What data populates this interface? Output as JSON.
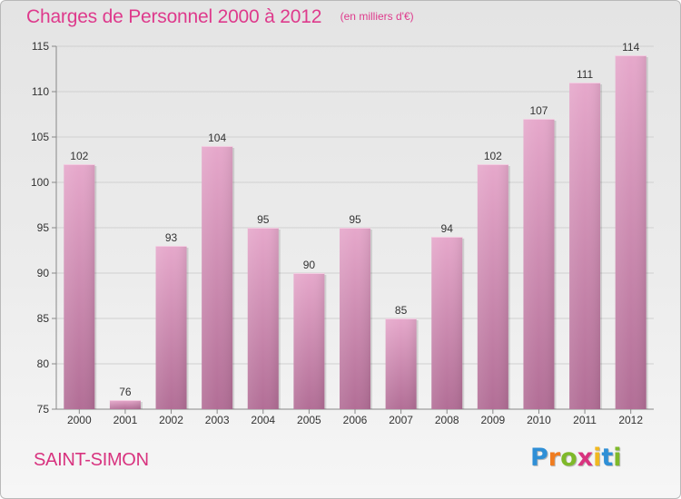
{
  "chart_data": {
    "type": "bar",
    "title": "Charges de Personnel 2000 à 2012",
    "subtitle": "(en milliers d'€)",
    "categories": [
      "2000",
      "2001",
      "2002",
      "2003",
      "2004",
      "2005",
      "2006",
      "2007",
      "2008",
      "2009",
      "2010",
      "2011",
      "2012"
    ],
    "values": [
      102,
      76,
      93,
      104,
      95,
      90,
      95,
      85,
      94,
      102,
      107,
      111,
      114
    ],
    "ylim": [
      75,
      115
    ],
    "yticks": [
      75,
      80,
      85,
      90,
      95,
      100,
      105,
      110,
      115
    ],
    "grid": true,
    "colors": {
      "bar_top": "#e6a8cb",
      "bar_bottom": "#b26e96",
      "title": "#de3a8c"
    }
  },
  "footer": {
    "commune": "SAINT-SIMON",
    "logo": "Proxiti"
  }
}
